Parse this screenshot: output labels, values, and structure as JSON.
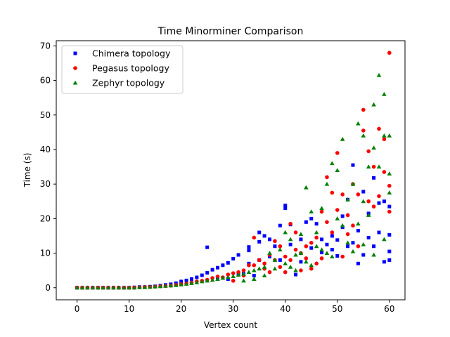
{
  "chart_data": {
    "type": "scatter",
    "title": "Time Minorminer Comparison",
    "xlabel": "Vertex count",
    "ylabel": "Time (s)",
    "xlim": [
      -4,
      63
    ],
    "ylim": [
      -3.5,
      71.5
    ],
    "xticks": [
      0,
      10,
      20,
      30,
      40,
      50,
      60
    ],
    "yticks": [
      0,
      10,
      20,
      30,
      40,
      50,
      60,
      70
    ],
    "grid": false,
    "legend_position": "top-left",
    "series": [
      {
        "name": "Chimera topology",
        "color": "#0000ff",
        "marker": "square",
        "points": [
          [
            0,
            0
          ],
          [
            1,
            0
          ],
          [
            2,
            0
          ],
          [
            3,
            0
          ],
          [
            4,
            0
          ],
          [
            5,
            0
          ],
          [
            6,
            0
          ],
          [
            7,
            0
          ],
          [
            8,
            0
          ],
          [
            9,
            0
          ],
          [
            10,
            0
          ],
          [
            11,
            0.1
          ],
          [
            12,
            0.2
          ],
          [
            13,
            0.2
          ],
          [
            14,
            0.3
          ],
          [
            15,
            0.4
          ],
          [
            16,
            0.6
          ],
          [
            17,
            0.8
          ],
          [
            18,
            1.0
          ],
          [
            19,
            1.3
          ],
          [
            20,
            1.8
          ],
          [
            21,
            2.1
          ],
          [
            22,
            2.5
          ],
          [
            23,
            3.0
          ],
          [
            24,
            3.6
          ],
          [
            25,
            4.3
          ],
          [
            25,
            11.7
          ],
          [
            26,
            5.2
          ],
          [
            27,
            5.8
          ],
          [
            28,
            6.5
          ],
          [
            29,
            7.2
          ],
          [
            30,
            8.4
          ],
          [
            31,
            9.5
          ],
          [
            32,
            4.0
          ],
          [
            33,
            10.8
          ],
          [
            33,
            11.8
          ],
          [
            34,
            3.5
          ],
          [
            35,
            13.3
          ],
          [
            35,
            16.0
          ],
          [
            36,
            15.0
          ],
          [
            37,
            14.0
          ],
          [
            38,
            12.0
          ],
          [
            39,
            18.0
          ],
          [
            40,
            23.0
          ],
          [
            40,
            23.8
          ],
          [
            41,
            18.3
          ],
          [
            42,
            3.8
          ],
          [
            43,
            14.0
          ],
          [
            44,
            19.0
          ],
          [
            45,
            20.0
          ],
          [
            46,
            18.5
          ],
          [
            47,
            10.2
          ],
          [
            48,
            12.5
          ],
          [
            49,
            15.0
          ],
          [
            50,
            9.2
          ],
          [
            51,
            20.7
          ],
          [
            52,
            25.5
          ],
          [
            53,
            35.5
          ],
          [
            54,
            7.0
          ],
          [
            55,
            27.8
          ],
          [
            56,
            21.5
          ],
          [
            57,
            31.8
          ],
          [
            58,
            24.5
          ],
          [
            59,
            7.5
          ],
          [
            59,
            25.0
          ],
          [
            60,
            23.5
          ],
          [
            60,
            8.0
          ],
          [
            60,
            10.5
          ],
          [
            60,
            15.3
          ],
          [
            57,
            12.0
          ],
          [
            55,
            9.5
          ],
          [
            53,
            13.0
          ],
          [
            51,
            17.5
          ],
          [
            49,
            11.0
          ],
          [
            47,
            14.0
          ],
          [
            45,
            11.5
          ],
          [
            43,
            7.5
          ],
          [
            41,
            12.5
          ],
          [
            39,
            8.0
          ],
          [
            37,
            9.0
          ],
          [
            35,
            8.0
          ],
          [
            33,
            7.0
          ],
          [
            31,
            4.0
          ],
          [
            29,
            2.5
          ],
          [
            27,
            3.0
          ],
          [
            58,
            16.0
          ],
          [
            56,
            14.5
          ],
          [
            54,
            16.5
          ],
          [
            52,
            12.0
          ],
          [
            50,
            13.8
          ]
        ]
      },
      {
        "name": "Pegasus topology",
        "color": "#ff0000",
        "marker": "circle",
        "points": [
          [
            0,
            0
          ],
          [
            1,
            0
          ],
          [
            2,
            0
          ],
          [
            3,
            0
          ],
          [
            4,
            0
          ],
          [
            5,
            0
          ],
          [
            6,
            0
          ],
          [
            7,
            0
          ],
          [
            8,
            0
          ],
          [
            9,
            0
          ],
          [
            10,
            0
          ],
          [
            11,
            0
          ],
          [
            12,
            0.1
          ],
          [
            13,
            0.2
          ],
          [
            14,
            0.2
          ],
          [
            15,
            0.3
          ],
          [
            16,
            0.4
          ],
          [
            17,
            0.5
          ],
          [
            18,
            0.6
          ],
          [
            19,
            0.8
          ],
          [
            20,
            1.0
          ],
          [
            21,
            1.2
          ],
          [
            22,
            1.5
          ],
          [
            23,
            1.8
          ],
          [
            24,
            2.0
          ],
          [
            25,
            2.3
          ],
          [
            26,
            2.8
          ],
          [
            27,
            3.2
          ],
          [
            28,
            3.0
          ],
          [
            29,
            3.8
          ],
          [
            30,
            4.2
          ],
          [
            31,
            4.5
          ],
          [
            32,
            5.0
          ],
          [
            33,
            6.5
          ],
          [
            34,
            14.5
          ],
          [
            35,
            8.0
          ],
          [
            36,
            7.0
          ],
          [
            37,
            9.5
          ],
          [
            38,
            13.5
          ],
          [
            39,
            12.0
          ],
          [
            40,
            9.0
          ],
          [
            41,
            18.5
          ],
          [
            42,
            16.0
          ],
          [
            43,
            5.0
          ],
          [
            44,
            12.0
          ],
          [
            45,
            13.0
          ],
          [
            46,
            14.5
          ],
          [
            47,
            8.5
          ],
          [
            48,
            32.0
          ],
          [
            49,
            27.5
          ],
          [
            50,
            39.0
          ],
          [
            51,
            9.0
          ],
          [
            52,
            21.0
          ],
          [
            53,
            30.0
          ],
          [
            54,
            27.0
          ],
          [
            55,
            51.5
          ],
          [
            55,
            45.5
          ],
          [
            56,
            39.5
          ],
          [
            57,
            35.0
          ],
          [
            58,
            46.0
          ],
          [
            59,
            43.0
          ],
          [
            59,
            33.5
          ],
          [
            60,
            68.0
          ],
          [
            60,
            29.5
          ],
          [
            60,
            22.0
          ],
          [
            56,
            25.0
          ],
          [
            54,
            12.0
          ],
          [
            52,
            15.5
          ],
          [
            50,
            22.5
          ],
          [
            48,
            19.0
          ],
          [
            46,
            7.0
          ],
          [
            44,
            8.5
          ],
          [
            42,
            11.0
          ],
          [
            40,
            4.5
          ],
          [
            38,
            8.0
          ],
          [
            36,
            5.5
          ],
          [
            34,
            6.5
          ],
          [
            32,
            3.5
          ],
          [
            30,
            2.0
          ],
          [
            58,
            26.5
          ],
          [
            57,
            23.5
          ],
          [
            53,
            18.0
          ],
          [
            51,
            27.0
          ],
          [
            49,
            16.0
          ],
          [
            47,
            22.0
          ],
          [
            45,
            5.5
          ],
          [
            43,
            10.0
          ],
          [
            41,
            8.0
          ],
          [
            39,
            6.0
          ],
          [
            37,
            4.5
          ]
        ]
      },
      {
        "name": "Zephyr topology",
        "color": "#008000",
        "marker": "triangle",
        "points": [
          [
            0,
            0
          ],
          [
            1,
            0
          ],
          [
            2,
            0
          ],
          [
            3,
            0
          ],
          [
            4,
            0
          ],
          [
            5,
            0
          ],
          [
            6,
            0
          ],
          [
            7,
            0
          ],
          [
            8,
            0
          ],
          [
            9,
            0
          ],
          [
            10,
            0
          ],
          [
            11,
            0
          ],
          [
            12,
            0.1
          ],
          [
            13,
            0.1
          ],
          [
            14,
            0.2
          ],
          [
            15,
            0.3
          ],
          [
            16,
            0.4
          ],
          [
            17,
            0.5
          ],
          [
            18,
            0.6
          ],
          [
            19,
            0.7
          ],
          [
            20,
            0.9
          ],
          [
            21,
            1.1
          ],
          [
            22,
            1.3
          ],
          [
            23,
            1.5
          ],
          [
            24,
            1.8
          ],
          [
            25,
            2.0
          ],
          [
            26,
            2.2
          ],
          [
            27,
            2.5
          ],
          [
            28,
            2.8
          ],
          [
            29,
            3.0
          ],
          [
            30,
            3.3
          ],
          [
            31,
            3.7
          ],
          [
            32,
            4.0
          ],
          [
            33,
            4.5
          ],
          [
            34,
            5.0
          ],
          [
            35,
            5.5
          ],
          [
            36,
            6.0
          ],
          [
            37,
            10.0
          ],
          [
            38,
            8.0
          ],
          [
            39,
            11.0
          ],
          [
            40,
            16.0
          ],
          [
            41,
            14.0
          ],
          [
            42,
            5.0
          ],
          [
            43,
            15.5
          ],
          [
            44,
            29.0
          ],
          [
            45,
            22.0
          ],
          [
            46,
            16.0
          ],
          [
            47,
            23.0
          ],
          [
            48,
            30.0
          ],
          [
            49,
            36.0
          ],
          [
            50,
            34.0
          ],
          [
            51,
            43.0
          ],
          [
            52,
            25.5
          ],
          [
            53,
            30.0
          ],
          [
            54,
            47.5
          ],
          [
            55,
            25.0
          ],
          [
            55,
            44.0
          ],
          [
            56,
            35.0
          ],
          [
            57,
            40.5
          ],
          [
            57,
            53.0
          ],
          [
            58,
            61.5
          ],
          [
            58,
            35.0
          ],
          [
            59,
            56.0
          ],
          [
            59,
            44.0
          ],
          [
            60,
            44.0
          ],
          [
            60,
            33.0
          ],
          [
            60,
            27.5
          ],
          [
            56,
            21.0
          ],
          [
            54,
            18.5
          ],
          [
            52,
            13.0
          ],
          [
            50,
            20.0
          ],
          [
            48,
            10.0
          ],
          [
            46,
            12.0
          ],
          [
            44,
            7.5
          ],
          [
            42,
            9.5
          ],
          [
            40,
            7.0
          ],
          [
            38,
            5.5
          ],
          [
            36,
            3.5
          ],
          [
            34,
            2.5
          ],
          [
            32,
            2.0
          ],
          [
            59,
            14.0
          ],
          [
            57,
            9.5
          ],
          [
            55,
            12.5
          ],
          [
            53,
            10.5
          ],
          [
            51,
            18.0
          ],
          [
            49,
            9.0
          ],
          [
            47,
            11.0
          ],
          [
            45,
            6.5
          ],
          [
            43,
            10.0
          ],
          [
            41,
            6.0
          ]
        ]
      }
    ]
  }
}
